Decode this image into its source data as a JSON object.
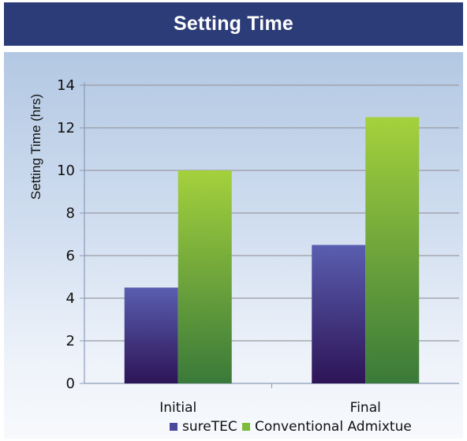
{
  "chart_data": {
    "type": "bar",
    "title": "Setting Time",
    "ylabel": "Setting Time (hrs)",
    "xlabel": "",
    "categories": [
      "Initial",
      "Final"
    ],
    "series": [
      {
        "name": "sureTEC",
        "values": [
          4.5,
          6.5
        ],
        "color": "#4a4a9c"
      },
      {
        "name": "Conventional Admixtue",
        "values": [
          10.0,
          12.5
        ],
        "color": "#7cbc3a"
      }
    ],
    "ylim": [
      0,
      14
    ],
    "yticks": [
      "0",
      "2",
      "4",
      "6",
      "8",
      "10",
      "12",
      "14"
    ],
    "grid": true,
    "legend_position": "bottom"
  }
}
